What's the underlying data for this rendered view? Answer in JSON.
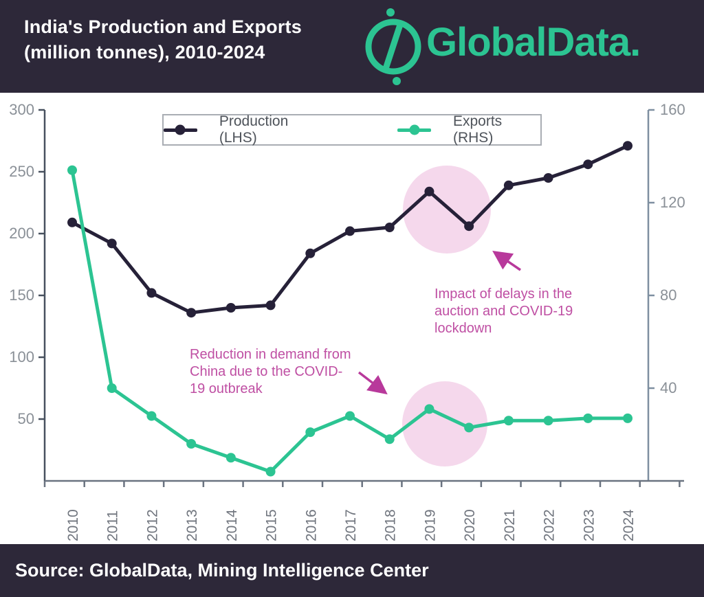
{
  "header": {
    "title_line1": "India's Production and Exports",
    "title_line2": "(million tonnes), 2010-2024",
    "brand": "GlobalData."
  },
  "footer": {
    "source": "Source: GlobalData, Mining Intelligence Center"
  },
  "legend": {
    "production_label": "Production (LHS)",
    "exports_label": "Exports (RHS)"
  },
  "annotations": {
    "impact": "Impact of delays in the auction and COVID-19 lockdown",
    "reduction": "Reduction in demand from China due to the COVID-19 outbreak"
  },
  "colors": {
    "header_bg": "#2d2839",
    "accent_green": "#2cc492",
    "production": "#262138",
    "exports": "#2cc492",
    "annotation_text": "#bf4fa3",
    "annotation_arrow": "#b8399b",
    "highlight_pink": "#f5d8ec",
    "axis_left": "#47505e",
    "axis_right": "#7e8fa0",
    "axis_bottom": "#6a7380",
    "tick_label": "#8a9097",
    "year_label": "#70757e"
  },
  "chart_data": {
    "type": "line",
    "title": "India's Production and Exports (million tonnes), 2010-2024",
    "xlabel": "",
    "ylabel_left": "",
    "ylabel_right": "",
    "legend_position": "top",
    "grid": false,
    "categories": [
      "2010",
      "2011",
      "2012",
      "2013",
      "2014",
      "2015",
      "2016",
      "2017",
      "2018",
      "2019",
      "2020",
      "2021",
      "2022",
      "2023",
      "2024"
    ],
    "series": [
      {
        "name": "Production (LHS)",
        "axis": "left",
        "color": "#262138",
        "values": [
          209,
          192,
          152,
          136,
          140,
          142,
          184,
          202,
          205,
          234,
          206,
          239,
          245,
          256,
          271
        ]
      },
      {
        "name": "Exports (RHS)",
        "axis": "right",
        "color": "#2cc492",
        "values": [
          134,
          40,
          28,
          16,
          10,
          4,
          21,
          28,
          18,
          31,
          23,
          26,
          26,
          27,
          27
        ]
      }
    ],
    "left_axis": {
      "range": [
        0,
        300
      ],
      "ticks": [
        300,
        250,
        200,
        150,
        100,
        50
      ]
    },
    "right_axis": {
      "range": [
        0,
        160
      ],
      "ticks": [
        160,
        120,
        80,
        40
      ]
    }
  }
}
